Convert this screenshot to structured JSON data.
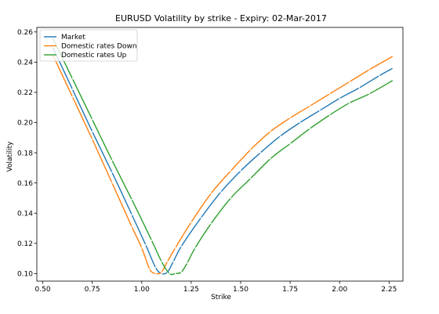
{
  "chart_data": {
    "type": "line",
    "title": "EURUSD  Volatility by strike - Expiry: 02-Mar-2017",
    "xlabel": "Strike",
    "ylabel": "Volatility",
    "xlim": [
      0.47,
      2.32
    ],
    "ylim": [
      0.095,
      0.263
    ],
    "xticks": [
      0.5,
      0.75,
      1.0,
      1.25,
      1.5,
      1.75,
      2.0,
      2.25
    ],
    "xtick_labels": [
      "0.50",
      "0.75",
      "1.00",
      "1.25",
      "1.50",
      "1.75",
      "2.00",
      "2.25"
    ],
    "yticks": [
      0.1,
      0.12,
      0.14,
      0.16,
      0.18,
      0.2,
      0.22,
      0.24,
      0.26
    ],
    "ytick_labels": [
      "0.10",
      "0.12",
      "0.14",
      "0.16",
      "0.18",
      "0.20",
      "0.22",
      "0.24",
      "0.26"
    ],
    "grid": false,
    "legend": "top-left",
    "series": [
      {
        "name": "Market",
        "color": "#1f77b4",
        "x": [
          0.55,
          0.65,
          0.75,
          0.85,
          0.95,
          1.02,
          1.07,
          1.1,
          1.13,
          1.16,
          1.2,
          1.3,
          1.4,
          1.5,
          1.6,
          1.7,
          1.8,
          1.9,
          2.0,
          2.1,
          2.2,
          2.27
        ],
        "y": [
          0.25,
          0.222,
          0.194,
          0.167,
          0.139,
          0.119,
          0.104,
          0.1,
          0.101,
          0.108,
          0.118,
          0.137,
          0.154,
          0.168,
          0.18,
          0.191,
          0.2,
          0.208,
          0.216,
          0.223,
          0.231,
          0.236
        ]
      },
      {
        "name": "Domestic rates Down",
        "color": "#ff7f0e",
        "x": [
          0.55,
          0.65,
          0.75,
          0.85,
          0.95,
          1.0,
          1.04,
          1.07,
          1.1,
          1.13,
          1.17,
          1.25,
          1.35,
          1.45,
          1.55,
          1.65,
          1.75,
          1.85,
          1.95,
          2.05,
          2.15,
          2.27
        ],
        "y": [
          0.245,
          0.217,
          0.189,
          0.16,
          0.131,
          0.117,
          0.103,
          0.1,
          0.101,
          0.108,
          0.117,
          0.134,
          0.153,
          0.168,
          0.182,
          0.194,
          0.203,
          0.211,
          0.219,
          0.227,
          0.235,
          0.244
        ]
      },
      {
        "name": "Domestic rates Up",
        "color": "#2ca02c",
        "x": [
          0.55,
          0.65,
          0.75,
          0.85,
          0.95,
          1.05,
          1.1,
          1.14,
          1.17,
          1.2,
          1.23,
          1.27,
          1.35,
          1.45,
          1.55,
          1.65,
          1.75,
          1.85,
          1.95,
          2.05,
          2.15,
          2.27
        ],
        "y": [
          0.256,
          0.229,
          0.202,
          0.175,
          0.149,
          0.122,
          0.108,
          0.1,
          0.1,
          0.101,
          0.107,
          0.117,
          0.133,
          0.15,
          0.163,
          0.176,
          0.186,
          0.196,
          0.205,
          0.213,
          0.219,
          0.228
        ]
      }
    ]
  }
}
